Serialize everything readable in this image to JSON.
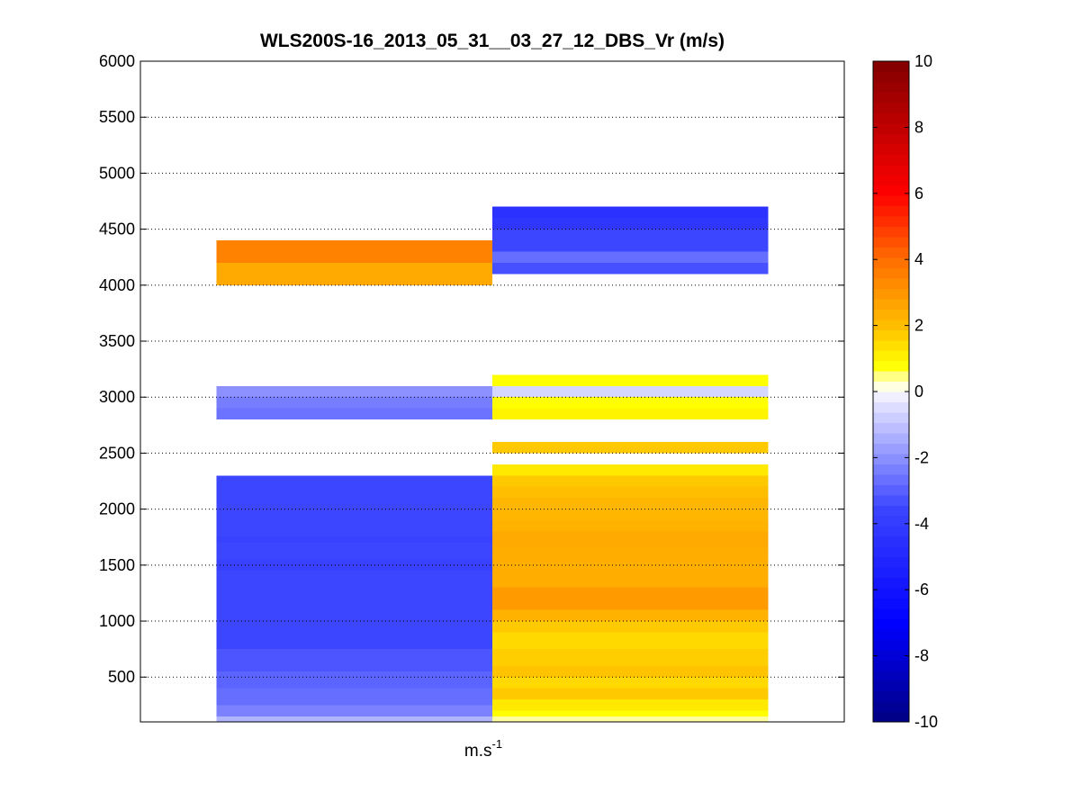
{
  "chart_data": {
    "type": "heatmap",
    "title": "WLS200S-16_2013_05_31__03_27_12_DBS_Vr (m/s)",
    "xlabel": "m.s",
    "xlabel_superscript": "-1",
    "ylabel": "",
    "ylim": [
      100,
      6000
    ],
    "yticks": [
      500,
      1000,
      1500,
      2000,
      2500,
      3000,
      3500,
      4000,
      4500,
      5000,
      5500,
      6000
    ],
    "grid": true,
    "colorbar": {
      "range": [
        -10,
        10
      ],
      "ticks": [
        -10,
        -8,
        -6,
        -4,
        -2,
        0,
        2,
        4,
        6,
        8,
        10
      ],
      "placement": "right"
    },
    "columns": [
      {
        "x_range": [
          0.108,
          0.5
        ],
        "cells": [
          {
            "y0": 4200,
            "y1": 4400,
            "value": 3.5
          },
          {
            "y0": 4000,
            "y1": 4200,
            "value": 2.5
          },
          {
            "y0": 3000,
            "y1": 3100,
            "value": -2.0
          },
          {
            "y0": 2900,
            "y1": 3000,
            "value": -2.4
          },
          {
            "y0": 2800,
            "y1": 2900,
            "value": -2.6
          },
          {
            "y0": 1750,
            "y1": 2300,
            "value": -3.5
          },
          {
            "y0": 1700,
            "y1": 1750,
            "value": -3.75
          },
          {
            "y0": 1550,
            "y1": 1700,
            "value": -3.5
          },
          {
            "y0": 1450,
            "y1": 1550,
            "value": -3.75
          },
          {
            "y0": 1400,
            "y1": 1450,
            "value": -3.5
          },
          {
            "y0": 750,
            "y1": 1400,
            "value": -3.5
          },
          {
            "y0": 550,
            "y1": 750,
            "value": -3.2
          },
          {
            "y0": 400,
            "y1": 550,
            "value": -2.9
          },
          {
            "y0": 250,
            "y1": 400,
            "value": -2.7
          },
          {
            "y0": 150,
            "y1": 250,
            "value": -2.3
          },
          {
            "y0": 100,
            "y1": 150,
            "value": -1.3
          }
        ]
      },
      {
        "x_range": [
          0.5,
          0.892
        ],
        "cells": [
          {
            "y0": 4600,
            "y1": 4700,
            "value": -4.5
          },
          {
            "y0": 4500,
            "y1": 4600,
            "value": -4.25
          },
          {
            "y0": 4300,
            "y1": 4500,
            "value": -3.5
          },
          {
            "y0": 4200,
            "y1": 4300,
            "value": -2.7
          },
          {
            "y0": 4100,
            "y1": 4200,
            "value": -3.3
          },
          {
            "y0": 3100,
            "y1": 3200,
            "value": 0.8
          },
          {
            "y0": 3000,
            "y1": 3100,
            "value": -0.6
          },
          {
            "y0": 2900,
            "y1": 3000,
            "value": 0.8
          },
          {
            "y0": 2800,
            "y1": 2900,
            "value": 1.0
          },
          {
            "y0": 2500,
            "y1": 2600,
            "value": 1.8
          },
          {
            "y0": 2300,
            "y1": 2400,
            "value": 1.2
          },
          {
            "y0": 2200,
            "y1": 2300,
            "value": 1.8
          },
          {
            "y0": 2100,
            "y1": 2200,
            "value": 2.0
          },
          {
            "y0": 1900,
            "y1": 2100,
            "value": 2.2
          },
          {
            "y0": 1800,
            "y1": 1900,
            "value": 2.3
          },
          {
            "y0": 1650,
            "y1": 1800,
            "value": 2.5
          },
          {
            "y0": 1300,
            "y1": 1650,
            "value": 2.4
          },
          {
            "y0": 1100,
            "y1": 1300,
            "value": 2.9
          },
          {
            "y0": 1000,
            "y1": 1100,
            "value": 2.3
          },
          {
            "y0": 900,
            "y1": 1000,
            "value": 1.8
          },
          {
            "y0": 750,
            "y1": 900,
            "value": 1.5
          },
          {
            "y0": 600,
            "y1": 750,
            "value": 1.7
          },
          {
            "y0": 500,
            "y1": 600,
            "value": 1.9
          },
          {
            "y0": 400,
            "y1": 500,
            "value": 1.5
          },
          {
            "y0": 300,
            "y1": 400,
            "value": 1.8
          },
          {
            "y0": 200,
            "y1": 300,
            "value": 1.2
          },
          {
            "y0": 150,
            "y1": 200,
            "value": 0.8
          },
          {
            "y0": 100,
            "y1": 150,
            "value": 0.4
          }
        ]
      }
    ]
  }
}
